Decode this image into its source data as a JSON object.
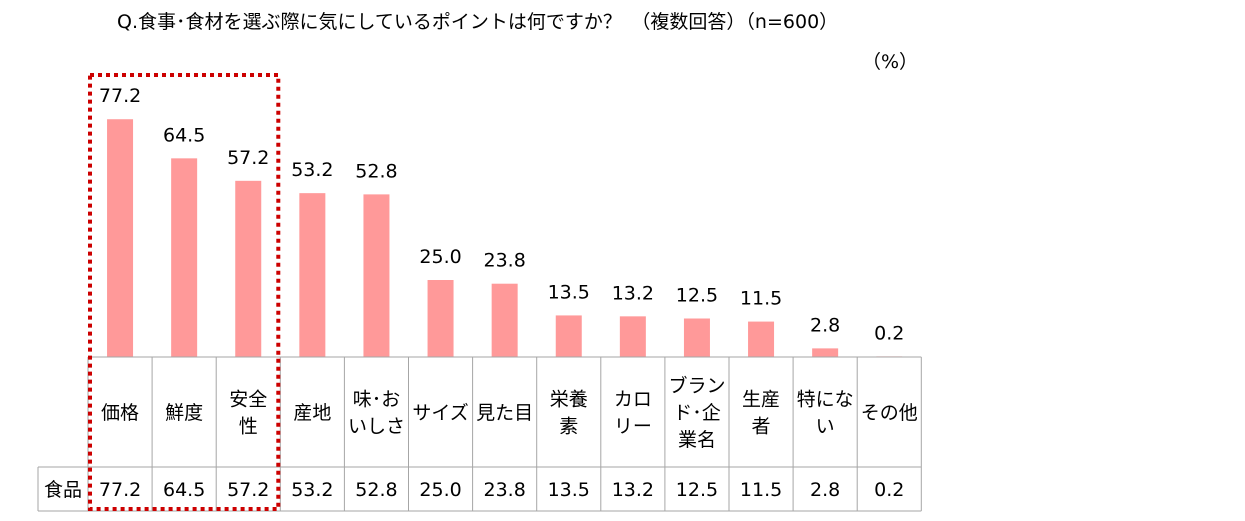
{
  "title": "Q.食事･食材を選ぶ際に気にしているポイントは何ですか？　（複数回答）（n=600）",
  "unit": "（%）",
  "row_label": "食品",
  "colors": {
    "bar": "#ff9999",
    "highlight_border": "#cc0000",
    "grid": "#a6a6a6"
  },
  "chart_data": {
    "type": "bar",
    "title": "Q.食事･食材を選ぶ際に気にしているポイントは何ですか？　（複数回答）（n=600）",
    "ylabel": "（%）",
    "categories": [
      [
        "価格"
      ],
      [
        "鮮度"
      ],
      [
        "安全",
        "性"
      ],
      [
        "産地"
      ],
      [
        "味･お",
        "いしさ"
      ],
      [
        "サイズ"
      ],
      [
        "見た目"
      ],
      [
        "栄養",
        "素"
      ],
      [
        "カロ",
        "リー"
      ],
      [
        "ブラン",
        "ド･企",
        "業名"
      ],
      [
        "生産",
        "者"
      ],
      [
        "特にな",
        "い"
      ],
      [
        "その他"
      ]
    ],
    "series": [
      {
        "name": "食品",
        "values": [
          77.2,
          64.5,
          57.2,
          53.2,
          52.8,
          25.0,
          23.8,
          13.5,
          13.2,
          12.5,
          11.5,
          2.8,
          0.2
        ]
      }
    ],
    "value_labels": [
      "77.2",
      "64.5",
      "57.2",
      "53.2",
      "52.8",
      "25.0",
      "23.8",
      "13.5",
      "13.2",
      "12.5",
      "11.5",
      "2.8",
      "0.2"
    ],
    "highlighted_categories": [
      0,
      1,
      2
    ],
    "ylim": [
      0,
      100
    ],
    "grid": false,
    "legend": "none"
  }
}
